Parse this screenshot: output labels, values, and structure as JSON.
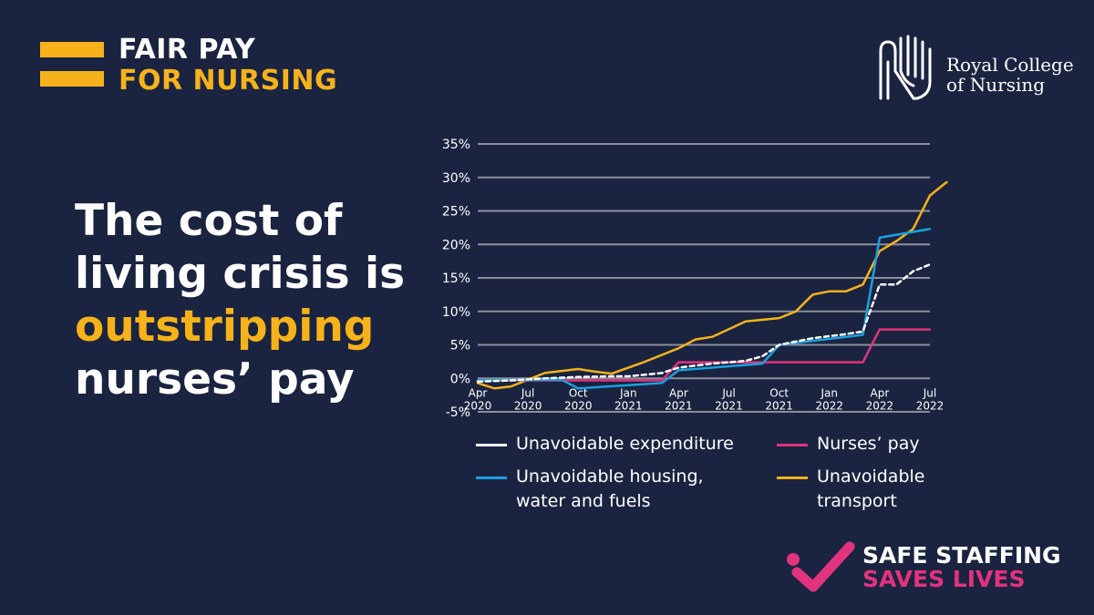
{
  "brand": {
    "line1": "FAIR PAY",
    "line2": "FOR NURSING"
  },
  "rcn_logo": {
    "line1": "Royal College",
    "line2": "of Nursing"
  },
  "headline": {
    "line1": "The cost of",
    "line2": "living crisis is",
    "line3": "outstripping",
    "line4": "nurses’ pay"
  },
  "campaign": {
    "line1": "SAFE STAFFING",
    "line2": "SAVES LIVES"
  },
  "colors": {
    "background": "#1a2440",
    "accent_yellow": "#f6b21a",
    "accent_pink": "#e2337d",
    "housing_blue": "#1aa1e0",
    "grid": "#8a8f9c"
  },
  "chart_data": {
    "type": "line",
    "title": "",
    "xlabel": "",
    "ylabel": "",
    "ylim": [
      -5,
      35
    ],
    "yticks": [
      35,
      30,
      25,
      20,
      15,
      10,
      5,
      0,
      -5
    ],
    "ytick_labels": [
      "35%",
      "30%",
      "25%",
      "20%",
      "15%",
      "10%",
      "5%",
      "0%",
      "-5%"
    ],
    "xlim": [
      "2020-04",
      "2022-07"
    ],
    "xticks": [
      {
        "month": "2020-04",
        "line1": "Apr",
        "line2": "2020"
      },
      {
        "month": "2020-07",
        "line1": "Jul",
        "line2": "2020"
      },
      {
        "month": "2020-10",
        "line1": "Oct",
        "line2": "2020"
      },
      {
        "month": "2021-01",
        "line1": "Jan",
        "line2": "2021"
      },
      {
        "month": "2021-04",
        "line1": "Apr",
        "line2": "2021"
      },
      {
        "month": "2021-07",
        "line1": "Jul",
        "line2": "2021"
      },
      {
        "month": "2021-10",
        "line1": "Oct",
        "line2": "2021"
      },
      {
        "month": "2022-01",
        "line1": "Jan",
        "line2": "2022"
      },
      {
        "month": "2022-04",
        "line1": "Apr",
        "line2": "2022"
      },
      {
        "month": "2022-07",
        "line1": "Jul",
        "line2": "2022"
      }
    ],
    "grid": true,
    "legend_position": "bottom",
    "series": [
      {
        "name": "Unavoidable expenditure",
        "color": "#ffffff",
        "dashed": true,
        "points": [
          [
            "2020-04",
            -0.5
          ],
          [
            "2020-06",
            -0.3
          ],
          [
            "2020-08",
            0
          ],
          [
            "2020-10",
            0.2
          ],
          [
            "2020-12",
            0.3
          ],
          [
            "2021-01",
            0.3
          ],
          [
            "2021-03",
            0.8
          ],
          [
            "2021-04",
            1.6
          ],
          [
            "2021-06",
            2.2
          ],
          [
            "2021-08",
            2.6
          ],
          [
            "2021-09",
            3.3
          ],
          [
            "2021-10",
            5.0
          ],
          [
            "2021-12",
            6.0
          ],
          [
            "2022-02",
            6.6
          ],
          [
            "2022-03",
            7.0
          ],
          [
            "2022-04",
            14.0
          ],
          [
            "2022-05",
            14.0
          ],
          [
            "2022-06",
            16.0
          ],
          [
            "2022-07",
            17.0
          ]
        ]
      },
      {
        "name": "Nurses’ pay",
        "color": "#e2337d",
        "dashed": false,
        "points": [
          [
            "2020-04",
            -0.3
          ],
          [
            "2020-09",
            -0.3
          ],
          [
            "2020-10",
            -0.3
          ],
          [
            "2021-03",
            -0.3
          ],
          [
            "2021-04",
            2.4
          ],
          [
            "2021-09",
            2.4
          ],
          [
            "2022-03",
            2.4
          ],
          [
            "2022-04",
            7.3
          ],
          [
            "2022-07",
            7.3
          ]
        ]
      },
      {
        "name": "Unavoidable housing, water and fuels",
        "color": "#1aa1e0",
        "dashed": false,
        "points": [
          [
            "2020-04",
            -0.3
          ],
          [
            "2020-09",
            -0.2
          ],
          [
            "2020-10",
            -1.5
          ],
          [
            "2021-03",
            -0.7
          ],
          [
            "2021-04",
            1.2
          ],
          [
            "2021-09",
            2.2
          ],
          [
            "2021-10",
            5.0
          ],
          [
            "2022-03",
            6.5
          ],
          [
            "2022-04",
            21.0
          ],
          [
            "2022-07",
            22.3
          ]
        ]
      },
      {
        "name": "Unavoidable transport",
        "color": "#f6b21a",
        "dashed": false,
        "points": [
          [
            "2020-04",
            -0.7
          ],
          [
            "2020-05",
            -1.5
          ],
          [
            "2020-06",
            -1.2
          ],
          [
            "2020-07",
            -0.2
          ],
          [
            "2020-08",
            0.8
          ],
          [
            "2020-10",
            1.4
          ],
          [
            "2020-11",
            1.0
          ],
          [
            "2020-12",
            0.7
          ],
          [
            "2021-02",
            2.5
          ],
          [
            "2021-04",
            4.5
          ],
          [
            "2021-05",
            5.8
          ],
          [
            "2021-06",
            6.2
          ],
          [
            "2021-08",
            8.5
          ],
          [
            "2021-10",
            9.0
          ],
          [
            "2021-11",
            10.0
          ],
          [
            "2021-12",
            12.5
          ],
          [
            "2022-01",
            13.0
          ],
          [
            "2022-02",
            13.0
          ],
          [
            "2022-03",
            14.0
          ],
          [
            "2022-04",
            19.0
          ],
          [
            "2022-05",
            20.5
          ],
          [
            "2022-06",
            22.3
          ],
          [
            "2022-07",
            27.3
          ],
          [
            "2022-08",
            29.3
          ]
        ]
      }
    ]
  },
  "legend": [
    {
      "label": "Unavoidable expenditure",
      "color": "#ffffff"
    },
    {
      "label": "Nurses’ pay",
      "color": "#e2337d"
    },
    {
      "label": "Unavoidable housing,",
      "label2": "water and fuels",
      "color": "#1aa1e0"
    },
    {
      "label": "Unavoidable",
      "label2": "transport",
      "color": "#f6b21a"
    }
  ]
}
